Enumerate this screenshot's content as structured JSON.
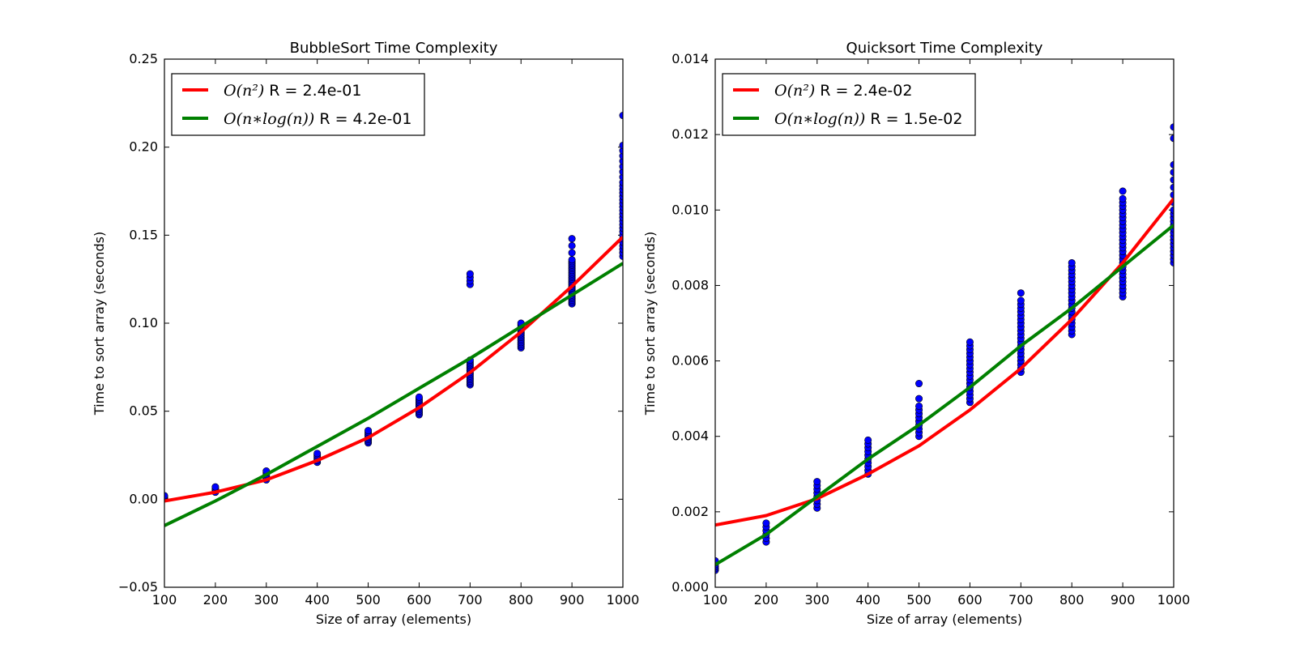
{
  "chart_data": [
    {
      "type": "scatter",
      "title": "BubbleSort Time Complexity",
      "xlabel": "Size of array (elements)",
      "ylabel": "Time to sort array (seconds)",
      "xlim": [
        100,
        1000
      ],
      "ylim": [
        -0.05,
        0.25
      ],
      "xticks": [
        "100",
        "200",
        "300",
        "400",
        "500",
        "600",
        "700",
        "800",
        "900",
        "1000"
      ],
      "yticks": [
        "−0.05",
        "0.00",
        "0.05",
        "0.10",
        "0.15",
        "0.20",
        "0.25"
      ],
      "grid": false,
      "legend_position": "top-left",
      "scatter": [
        {
          "x": 100,
          "y": [
            0.0005,
            0.001,
            0.0015,
            0.002
          ]
        },
        {
          "x": 200,
          "y": [
            0.004,
            0.005,
            0.0055,
            0.006,
            0.007
          ]
        },
        {
          "x": 300,
          "y": [
            0.011,
            0.012,
            0.013,
            0.014,
            0.015,
            0.016
          ]
        },
        {
          "x": 400,
          "y": [
            0.021,
            0.022,
            0.023,
            0.024,
            0.025,
            0.026
          ]
        },
        {
          "x": 500,
          "y": [
            0.032,
            0.033,
            0.034,
            0.035,
            0.036,
            0.037,
            0.038,
            0.039
          ]
        },
        {
          "x": 600,
          "y": [
            0.048,
            0.049,
            0.05,
            0.051,
            0.052,
            0.053,
            0.054,
            0.055,
            0.056,
            0.057,
            0.058
          ]
        },
        {
          "x": 700,
          "y": [
            0.065,
            0.066,
            0.067,
            0.068,
            0.069,
            0.07,
            0.071,
            0.072,
            0.073,
            0.074,
            0.075,
            0.076,
            0.077,
            0.078,
            0.079,
            0.122,
            0.124,
            0.126,
            0.128
          ]
        },
        {
          "x": 800,
          "y": [
            0.086,
            0.087,
            0.088,
            0.089,
            0.09,
            0.091,
            0.092,
            0.093,
            0.094,
            0.095,
            0.096,
            0.097,
            0.098,
            0.099,
            0.1
          ]
        },
        {
          "x": 900,
          "y": [
            0.111,
            0.112,
            0.113,
            0.114,
            0.115,
            0.116,
            0.117,
            0.118,
            0.119,
            0.12,
            0.121,
            0.122,
            0.123,
            0.124,
            0.125,
            0.126,
            0.127,
            0.128,
            0.129,
            0.13,
            0.131,
            0.132,
            0.133,
            0.134,
            0.135,
            0.136,
            0.14,
            0.144,
            0.148
          ]
        },
        {
          "x": 1000,
          "y": [
            0.138,
            0.14,
            0.142,
            0.144,
            0.146,
            0.148,
            0.15,
            0.152,
            0.154,
            0.156,
            0.158,
            0.16,
            0.162,
            0.164,
            0.166,
            0.168,
            0.17,
            0.172,
            0.174,
            0.176,
            0.178,
            0.18,
            0.183,
            0.186,
            0.189,
            0.192,
            0.195,
            0.198,
            0.201,
            0.218
          ]
        }
      ],
      "series": [
        {
          "name": "O(n²)",
          "name_suffix": " R = 2.4e-01",
          "color": "#ff0000",
          "x": [
            100,
            200,
            300,
            400,
            500,
            600,
            700,
            800,
            900,
            1000
          ],
          "y": [
            -0.001,
            0.004,
            0.011,
            0.022,
            0.035,
            0.052,
            0.072,
            0.095,
            0.121,
            0.149
          ]
        },
        {
          "name": "O(n∗log(n))",
          "name_suffix": " R = 4.2e-01",
          "color": "#008000",
          "x": [
            100,
            200,
            300,
            400,
            500,
            600,
            700,
            800,
            900,
            1000
          ],
          "y": [
            -0.015,
            -0.001,
            0.014,
            0.03,
            0.046,
            0.063,
            0.08,
            0.098,
            0.116,
            0.134
          ]
        }
      ]
    },
    {
      "type": "scatter",
      "title": "Quicksort Time Complexity",
      "xlabel": "Size of array (elements)",
      "ylabel": "Time to sort array (seconds)",
      "xlim": [
        100,
        1000
      ],
      "ylim": [
        0,
        0.014
      ],
      "xticks": [
        "100",
        "200",
        "300",
        "400",
        "500",
        "600",
        "700",
        "800",
        "900",
        "1000"
      ],
      "yticks": [
        "0.000",
        "0.002",
        "0.004",
        "0.006",
        "0.008",
        "0.010",
        "0.012",
        "0.014"
      ],
      "grid": false,
      "legend_position": "top-left",
      "scatter": [
        {
          "x": 100,
          "y": [
            0.00045,
            0.0005,
            0.00055,
            0.0006,
            0.00065,
            0.0007
          ]
        },
        {
          "x": 200,
          "y": [
            0.0012,
            0.0013,
            0.0014,
            0.0015,
            0.0016,
            0.0017
          ]
        },
        {
          "x": 300,
          "y": [
            0.0021,
            0.0022,
            0.0023,
            0.0024,
            0.0025,
            0.0026,
            0.0027,
            0.0028
          ]
        },
        {
          "x": 400,
          "y": [
            0.003,
            0.0031,
            0.0032,
            0.0033,
            0.0034,
            0.0035,
            0.0036,
            0.0037,
            0.0038,
            0.0039
          ]
        },
        {
          "x": 500,
          "y": [
            0.004,
            0.0041,
            0.0042,
            0.0043,
            0.0044,
            0.0045,
            0.0046,
            0.0047,
            0.0048,
            0.005,
            0.0054
          ]
        },
        {
          "x": 600,
          "y": [
            0.0049,
            0.005,
            0.0051,
            0.0052,
            0.0053,
            0.0054,
            0.0055,
            0.0056,
            0.0057,
            0.0058,
            0.0059,
            0.006,
            0.0061,
            0.0062,
            0.0063,
            0.0064,
            0.0065
          ]
        },
        {
          "x": 700,
          "y": [
            0.0057,
            0.0058,
            0.0059,
            0.006,
            0.0061,
            0.0062,
            0.0063,
            0.0064,
            0.0065,
            0.0066,
            0.0067,
            0.0068,
            0.0069,
            0.007,
            0.0071,
            0.0072,
            0.0073,
            0.0074,
            0.0075,
            0.0076,
            0.0078
          ]
        },
        {
          "x": 800,
          "y": [
            0.0067,
            0.0068,
            0.0069,
            0.007,
            0.0071,
            0.0072,
            0.0073,
            0.0074,
            0.0075,
            0.0076,
            0.0077,
            0.0078,
            0.0079,
            0.008,
            0.0081,
            0.0082,
            0.0083,
            0.0084,
            0.0085,
            0.0086
          ]
        },
        {
          "x": 900,
          "y": [
            0.0077,
            0.0078,
            0.0079,
            0.008,
            0.0081,
            0.0082,
            0.0083,
            0.0084,
            0.0085,
            0.0086,
            0.0087,
            0.0088,
            0.0089,
            0.009,
            0.0091,
            0.0092,
            0.0093,
            0.0094,
            0.0095,
            0.0096,
            0.0097,
            0.0098,
            0.0099,
            0.01,
            0.0101,
            0.0102,
            0.0103,
            0.0105
          ]
        },
        {
          "x": 1000,
          "y": [
            0.0086,
            0.0087,
            0.0088,
            0.0089,
            0.009,
            0.0091,
            0.0092,
            0.0093,
            0.0094,
            0.0095,
            0.0096,
            0.0097,
            0.0098,
            0.0099,
            0.01,
            0.0102,
            0.0104,
            0.0106,
            0.0108,
            0.011,
            0.0112,
            0.0119,
            0.0122
          ]
        }
      ],
      "series": [
        {
          "name": "O(n²)",
          "name_suffix": " R = 2.4e-02",
          "color": "#ff0000",
          "x": [
            100,
            200,
            300,
            400,
            500,
            600,
            700,
            800,
            900,
            1000
          ],
          "y": [
            0.00165,
            0.0019,
            0.00235,
            0.003,
            0.00375,
            0.0047,
            0.0058,
            0.0071,
            0.0086,
            0.0103
          ]
        },
        {
          "name": "O(n∗log(n))",
          "name_suffix": " R = 1.5e-02",
          "color": "#008000",
          "x": [
            100,
            200,
            300,
            400,
            500,
            600,
            700,
            800,
            900,
            1000
          ],
          "y": [
            0.0006,
            0.0014,
            0.0024,
            0.0034,
            0.0043,
            0.0053,
            0.0064,
            0.0074,
            0.0085,
            0.0096
          ]
        }
      ]
    }
  ]
}
